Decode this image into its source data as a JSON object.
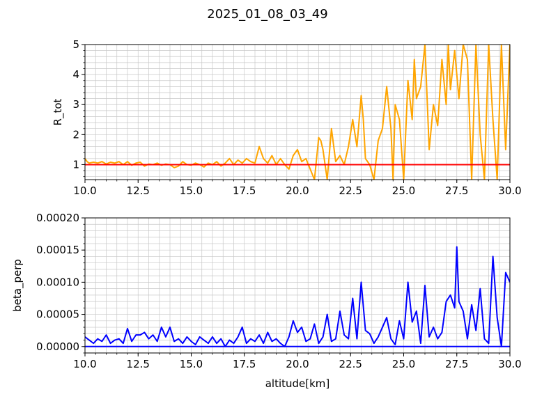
{
  "figure": {
    "title": "2025_01_08_03_49"
  },
  "chart_data": [
    {
      "type": "line",
      "title": "",
      "xlabel": "",
      "ylabel": "R_tot",
      "xlim": [
        10.0,
        30.0
      ],
      "ylim": [
        0.5,
        5.0
      ],
      "xticks": [
        "10.0",
        "12.5",
        "15.0",
        "17.5",
        "20.0",
        "22.5",
        "25.0",
        "27.5",
        "30.0"
      ],
      "yticks": [
        "1",
        "2",
        "3",
        "4",
        "5"
      ],
      "grid": true,
      "colors": {
        "series": "#ffa500",
        "reference": "#ff0000"
      },
      "reference_line": {
        "y": 1.0
      },
      "series": [
        {
          "x": [
            10.0,
            10.1,
            10.2,
            10.4,
            10.6,
            10.8,
            11.0,
            11.2,
            11.4,
            11.6,
            11.8,
            12.0,
            12.2,
            12.4,
            12.6,
            12.8,
            13.0,
            13.2,
            13.4,
            13.6,
            13.8,
            14.0,
            14.2,
            14.4,
            14.6,
            14.8,
            15.0,
            15.2,
            15.4,
            15.6,
            15.8,
            16.0,
            16.2,
            16.4,
            16.6,
            16.8,
            17.0,
            17.2,
            17.4,
            17.6,
            17.8,
            18.0,
            18.2,
            18.4,
            18.6,
            18.8,
            19.0,
            19.2,
            19.4,
            19.6,
            19.8,
            20.0,
            20.2,
            20.4,
            20.6,
            20.8,
            21.0,
            21.1,
            21.2,
            21.4,
            21.6,
            21.8,
            22.0,
            22.2,
            22.4,
            22.6,
            22.8,
            23.0,
            23.1,
            23.2,
            23.4,
            23.6,
            23.8,
            24.0,
            24.2,
            24.4,
            24.5,
            24.6,
            24.8,
            25.0,
            25.2,
            25.4,
            25.5,
            25.6,
            25.8,
            26.0,
            26.2,
            26.4,
            26.6,
            26.8,
            27.0,
            27.1,
            27.2,
            27.4,
            27.6,
            27.8,
            28.0,
            28.2,
            28.4,
            28.6,
            28.8,
            29.0,
            29.2,
            29.4,
            29.6,
            29.8,
            30.0
          ],
          "y": [
            1.2,
            1.1,
            1.05,
            1.08,
            1.05,
            1.1,
            1.02,
            1.08,
            1.05,
            1.1,
            1.0,
            1.1,
            0.98,
            1.05,
            1.08,
            0.95,
            1.02,
            1.0,
            1.05,
            0.98,
            1.02,
            1.0,
            0.9,
            0.95,
            1.1,
            1.0,
            0.98,
            1.05,
            1.0,
            0.92,
            1.05,
            1.0,
            1.1,
            0.95,
            1.05,
            1.2,
            1.0,
            1.15,
            1.05,
            1.2,
            1.1,
            1.05,
            1.6,
            1.2,
            1.05,
            1.3,
            1.0,
            1.2,
            1.0,
            0.85,
            1.3,
            1.5,
            1.1,
            1.2,
            0.85,
            0.5,
            1.9,
            1.8,
            1.5,
            0.5,
            2.2,
            1.1,
            1.3,
            1.0,
            1.6,
            2.5,
            1.6,
            3.3,
            2.5,
            1.2,
            1.0,
            0.5,
            1.8,
            2.2,
            3.6,
            2.2,
            0.5,
            3.0,
            2.5,
            0.5,
            3.8,
            2.5,
            4.5,
            3.2,
            3.6,
            5.0,
            1.5,
            3.0,
            2.3,
            4.5,
            3.0,
            5.0,
            3.5,
            4.8,
            3.2,
            5.0,
            4.5,
            0.5,
            5.0,
            2.0,
            0.5,
            5.0,
            2.5,
            0.5,
            5.0,
            1.5,
            5.0
          ]
        }
      ]
    },
    {
      "type": "line",
      "title": "",
      "xlabel": "altitude[km]",
      "ylabel": "beta_perp",
      "xlim": [
        10.0,
        30.0
      ],
      "ylim": [
        -1e-05,
        0.0002
      ],
      "xticks": [
        "10.0",
        "12.5",
        "15.0",
        "17.5",
        "20.0",
        "22.5",
        "25.0",
        "27.5",
        "30.0"
      ],
      "yticks": [
        "0.00000",
        "0.00005",
        "0.00010",
        "0.00015",
        "0.00020"
      ],
      "grid": true,
      "colors": {
        "series": "#0000ff",
        "reference": "#0000ff"
      },
      "reference_line": {
        "y": 0.0
      },
      "series": [
        {
          "x": [
            10.0,
            10.2,
            10.4,
            10.6,
            10.8,
            11.0,
            11.2,
            11.4,
            11.6,
            11.8,
            12.0,
            12.2,
            12.4,
            12.6,
            12.8,
            13.0,
            13.2,
            13.4,
            13.6,
            13.8,
            14.0,
            14.2,
            14.4,
            14.6,
            14.8,
            15.0,
            15.2,
            15.4,
            15.6,
            15.8,
            16.0,
            16.2,
            16.4,
            16.6,
            16.8,
            17.0,
            17.2,
            17.4,
            17.6,
            17.8,
            18.0,
            18.2,
            18.4,
            18.6,
            18.8,
            19.0,
            19.2,
            19.4,
            19.6,
            19.8,
            20.0,
            20.2,
            20.4,
            20.6,
            20.8,
            21.0,
            21.2,
            21.4,
            21.6,
            21.8,
            22.0,
            22.2,
            22.4,
            22.6,
            22.8,
            23.0,
            23.2,
            23.4,
            23.6,
            23.8,
            24.0,
            24.2,
            24.4,
            24.6,
            24.8,
            25.0,
            25.2,
            25.4,
            25.6,
            25.8,
            26.0,
            26.2,
            26.4,
            26.6,
            26.8,
            27.0,
            27.2,
            27.4,
            27.5,
            27.6,
            27.8,
            28.0,
            28.2,
            28.4,
            28.6,
            28.8,
            29.0,
            29.2,
            29.4,
            29.6,
            29.8,
            30.0
          ],
          "y": [
            1.5e-05,
            1e-05,
            5e-06,
            1.2e-05,
            8e-06,
            1.8e-05,
            5e-06,
            1e-05,
            1.2e-05,
            5e-06,
            2.8e-05,
            8e-06,
            1.8e-05,
            1.8e-05,
            2.2e-05,
            1.2e-05,
            1.8e-05,
            8e-06,
            3e-05,
            1.5e-05,
            3e-05,
            8e-06,
            1.2e-05,
            5e-06,
            1.5e-05,
            8e-06,
            3e-06,
            1.5e-05,
            1e-05,
            5e-06,
            1.5e-05,
            5e-06,
            1.2e-05,
            0.0,
            1e-05,
            5e-06,
            1.5e-05,
            3e-05,
            5e-06,
            1.2e-05,
            8e-06,
            1.8e-05,
            5e-06,
            2.2e-05,
            8e-06,
            1.2e-05,
            5e-06,
            0.0,
            1.5e-05,
            4e-05,
            2.2e-05,
            3e-05,
            8e-06,
            1.2e-05,
            3.5e-05,
            5e-06,
            1.5e-05,
            5e-05,
            8e-06,
            1.2e-05,
            5.5e-05,
            1.8e-05,
            1.2e-05,
            7.5e-05,
            1.2e-05,
            0.0001,
            2.5e-05,
            2e-05,
            5e-06,
            1.5e-05,
            3e-05,
            4.5e-05,
            1.2e-05,
            3e-06,
            4e-05,
            1.2e-05,
            0.0001,
            3.8e-05,
            5.5e-05,
            5e-06,
            9.5e-05,
            1.5e-05,
            3e-05,
            1.2e-05,
            2.2e-05,
            7e-05,
            8e-05,
            6e-05,
            0.000155,
            7e-05,
            5.5e-05,
            1.2e-05,
            6.5e-05,
            2.5e-05,
            9e-05,
            1.2e-05,
            5e-06,
            0.00014,
            4.5e-05,
            0.0,
            0.000115,
            0.0001
          ]
        }
      ]
    }
  ]
}
